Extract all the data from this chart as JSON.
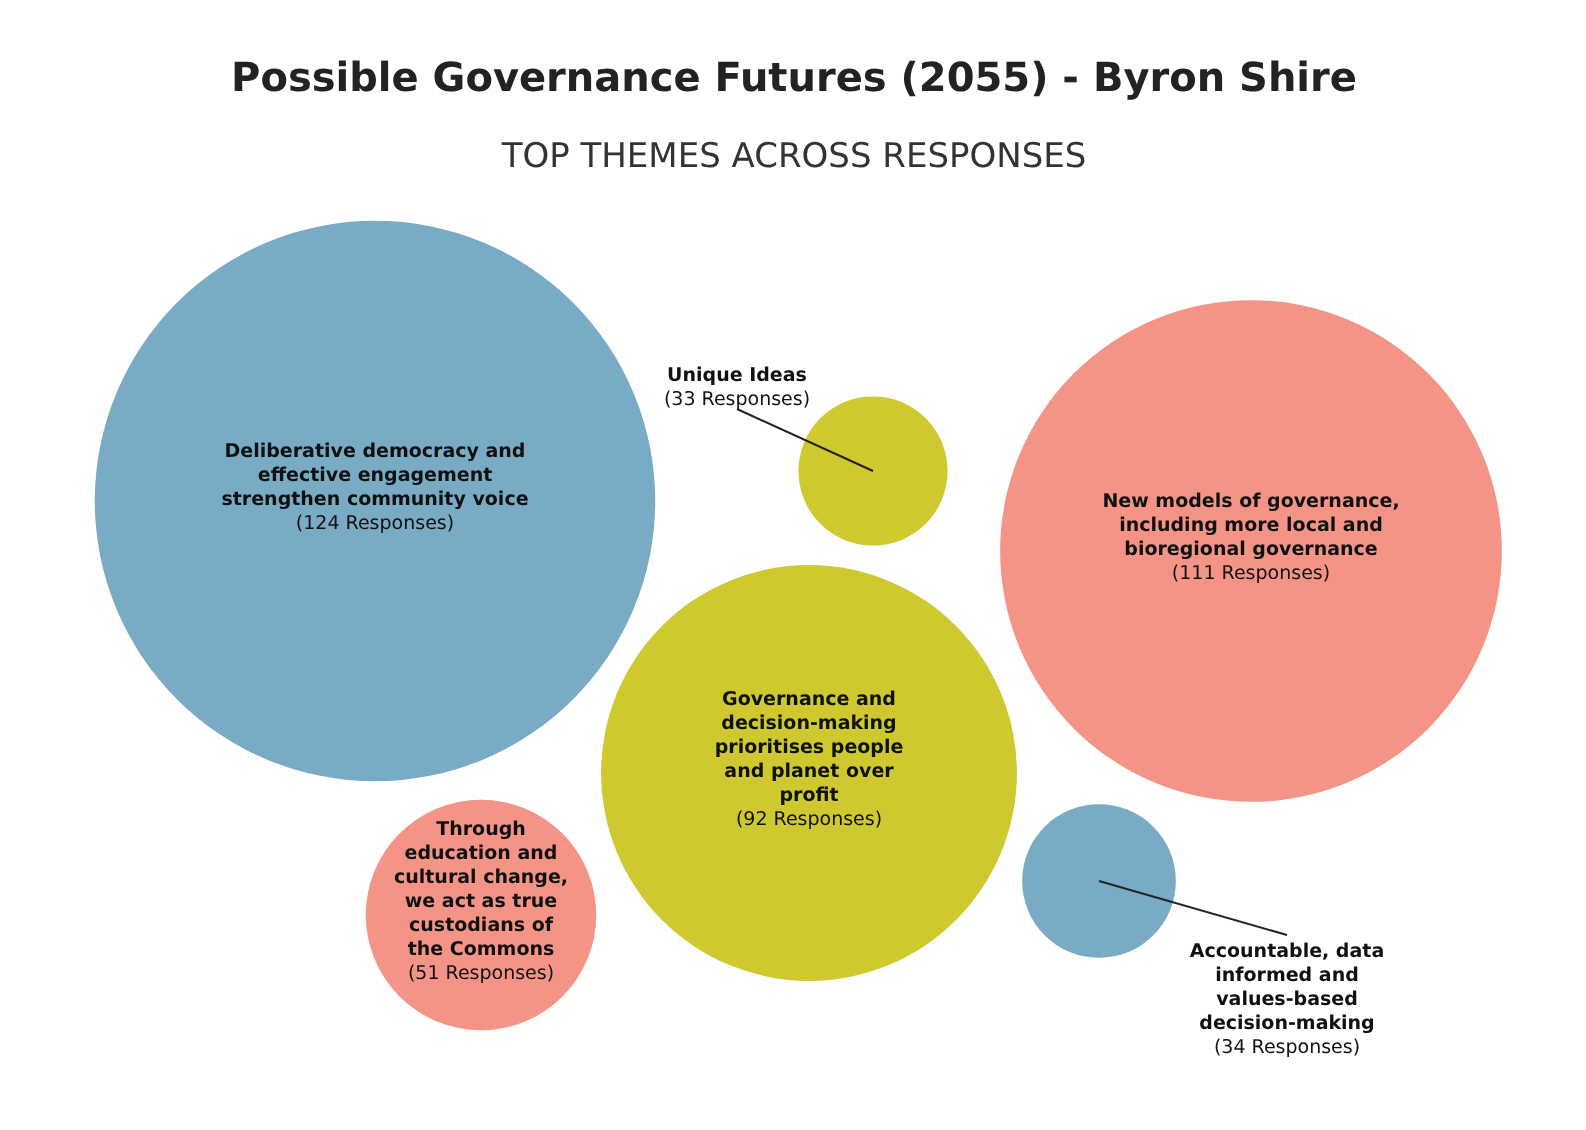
{
  "chart_data": {
    "type": "other",
    "title": "Possible Governance Futures (2055) - Byron Shire",
    "subtitle": "TOP THEMES ACROSS RESPONSES",
    "categories": [
      "Deliberative democracy and effective engagement strengthen community voice",
      "Unique Ideas",
      "New models of governance, including more local and bioregional governance",
      "Governance and decision-making prioritises people and planet over profit",
      "Through education and cultural change, we act as true custodians of the Commons",
      "Accountable, data informed and values-based decision-making"
    ],
    "values": [
      124,
      33,
      111,
      92,
      51,
      34
    ],
    "value_labels": [
      "(124 Responses)",
      "(33 Responses)",
      "(111 Responses)",
      "(92 Responses)",
      "(51 Responses)",
      "(34 Responses)"
    ],
    "colors": [
      "#79abc4",
      "#cdc92f",
      "#f39486",
      "#cdc92f",
      "#f39486",
      "#79abc4"
    ]
  }
}
